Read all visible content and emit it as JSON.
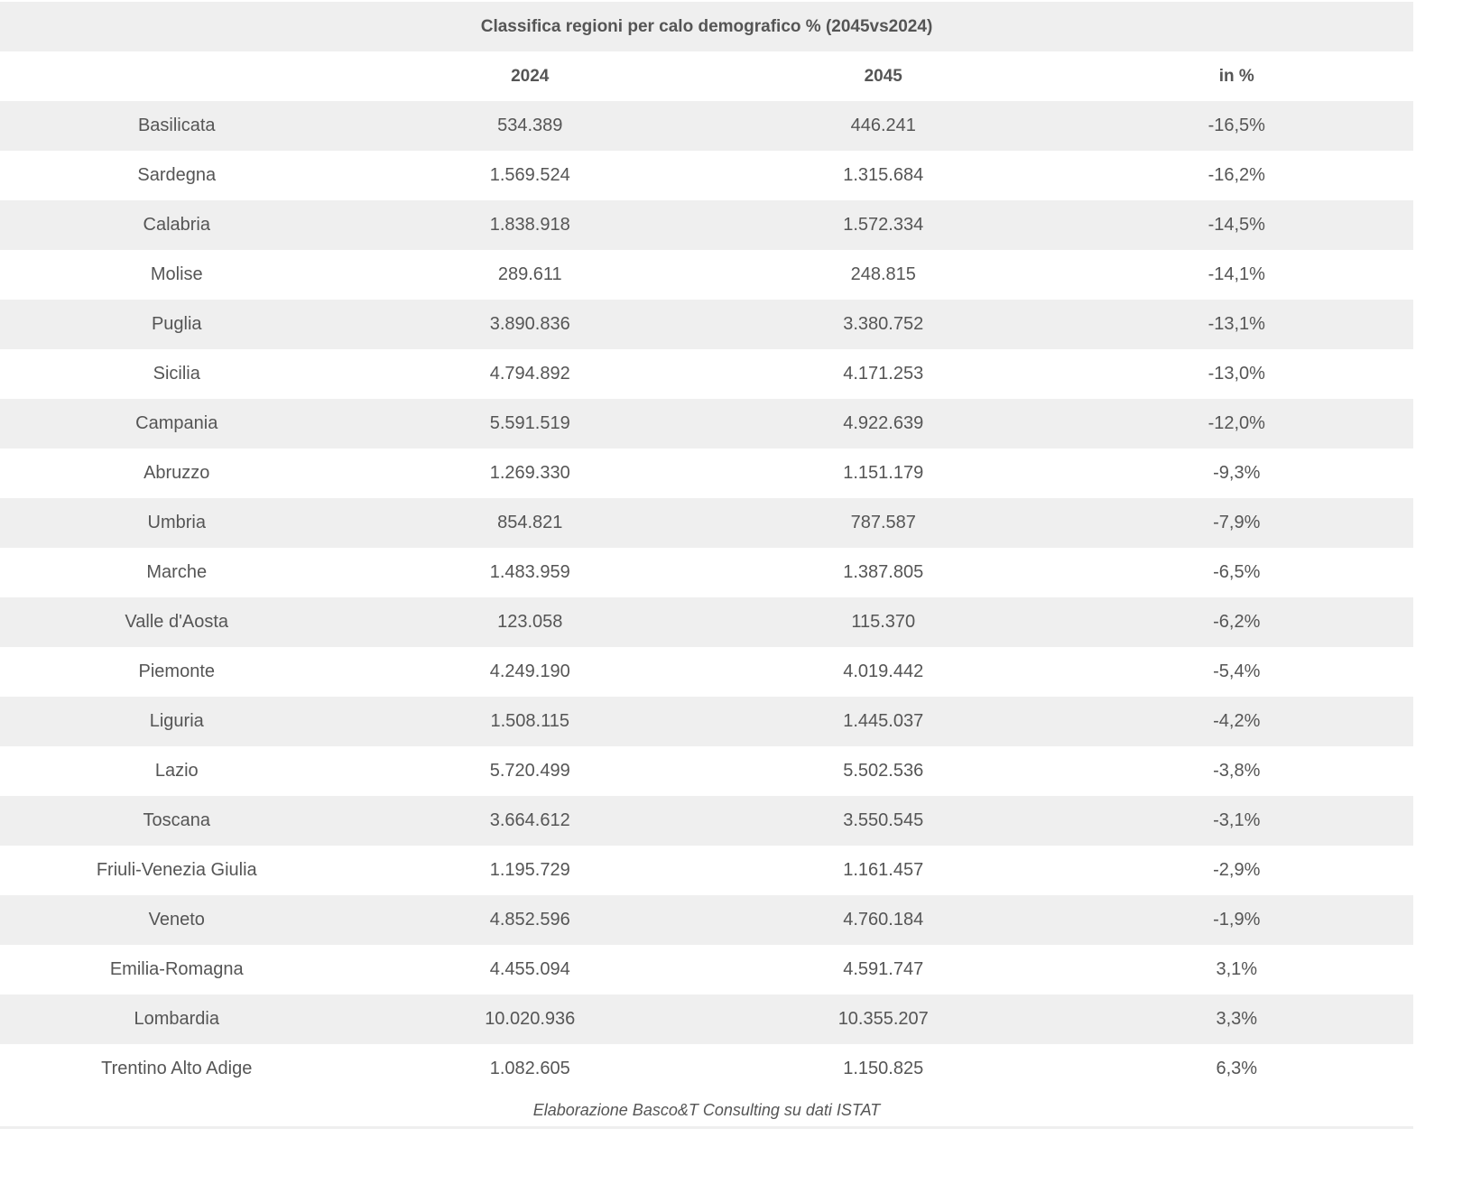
{
  "title": "Classifica regioni per calo demografico % (2045vs2024)",
  "columns": [
    "",
    "2024",
    "2045",
    "in %"
  ],
  "rows": [
    [
      "Basilicata",
      "534.389",
      "446.241",
      "-16,5%"
    ],
    [
      "Sardegna",
      "1.569.524",
      "1.315.684",
      "-16,2%"
    ],
    [
      "Calabria",
      "1.838.918",
      "1.572.334",
      "-14,5%"
    ],
    [
      "Molise",
      "289.611",
      "248.815",
      "-14,1%"
    ],
    [
      "Puglia",
      "3.890.836",
      "3.380.752",
      "-13,1%"
    ],
    [
      "Sicilia",
      "4.794.892",
      "4.171.253",
      "-13,0%"
    ],
    [
      "Campania",
      "5.591.519",
      "4.922.639",
      "-12,0%"
    ],
    [
      "Abruzzo",
      "1.269.330",
      "1.151.179",
      "-9,3%"
    ],
    [
      "Umbria",
      "854.821",
      "787.587",
      "-7,9%"
    ],
    [
      "Marche",
      "1.483.959",
      "1.387.805",
      "-6,5%"
    ],
    [
      "Valle d'Aosta",
      "123.058",
      "115.370",
      "-6,2%"
    ],
    [
      "Piemonte",
      "4.249.190",
      "4.019.442",
      "-5,4%"
    ],
    [
      "Liguria",
      "1.508.115",
      "1.445.037",
      "-4,2%"
    ],
    [
      "Lazio",
      "5.720.499",
      "5.502.536",
      "-3,8%"
    ],
    [
      "Toscana",
      "3.664.612",
      "3.550.545",
      "-3,1%"
    ],
    [
      "Friuli-Venezia Giulia",
      "1.195.729",
      "1.161.457",
      "-2,9%"
    ],
    [
      "Veneto",
      "4.852.596",
      "4.760.184",
      "-1,9%"
    ],
    [
      "Emilia-Romagna",
      "4.455.094",
      "4.591.747",
      "3,1%"
    ],
    [
      "Lombardia",
      "10.020.936",
      "10.355.207",
      "3,3%"
    ],
    [
      "Trentino Alto Adige",
      "1.082.605",
      "1.150.825",
      "6,3%"
    ]
  ],
  "caption": "Elaborazione Basco&T Consulting su dati ISTAT"
}
